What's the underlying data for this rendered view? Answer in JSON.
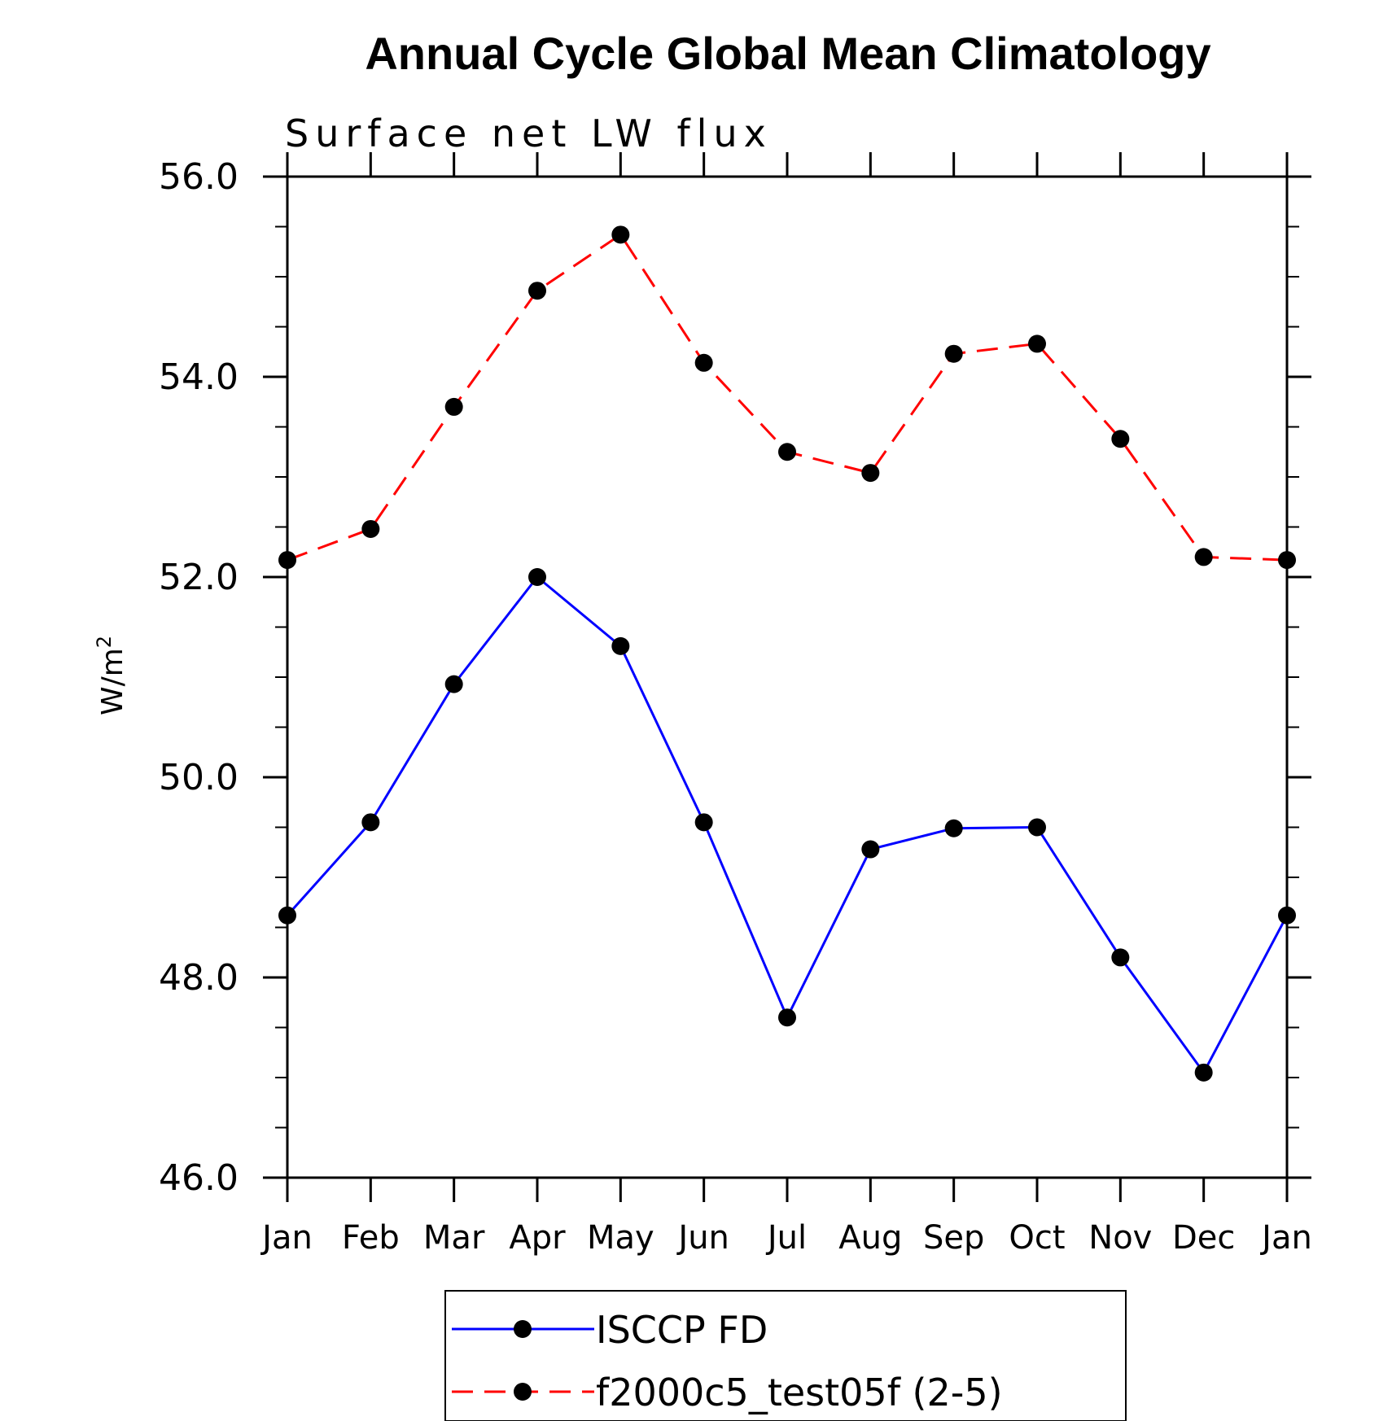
{
  "chart_data": {
    "type": "line",
    "title": "Annual Cycle Global Mean Climatology",
    "subtitle": "Surface net LW flux",
    "ylabel": "W/m",
    "ylabel_superscript": "2",
    "ylim": [
      46.0,
      56.0
    ],
    "yticks": [
      "46.0",
      "48.0",
      "50.0",
      "52.0",
      "54.0",
      "56.0"
    ],
    "categories": [
      "Jan",
      "Feb",
      "Mar",
      "Apr",
      "May",
      "Jun",
      "Jul",
      "Aug",
      "Sep",
      "Oct",
      "Nov",
      "Dec",
      "Jan"
    ],
    "series": [
      {
        "name": "ISCCP FD",
        "color": "#0000ff",
        "line_style": "solid",
        "marker": "filled-circle",
        "values": [
          48.62,
          49.55,
          50.93,
          52.0,
          51.31,
          49.55,
          47.6,
          49.28,
          49.49,
          49.5,
          48.2,
          47.05,
          48.62
        ]
      },
      {
        "name": "f2000c5_test05f (2-5)",
        "color": "#ff0000",
        "line_style": "dashed",
        "marker": "filled-circle",
        "values": [
          52.17,
          52.48,
          53.7,
          54.86,
          55.42,
          54.14,
          53.25,
          53.04,
          54.23,
          54.33,
          53.38,
          52.2,
          52.17
        ]
      }
    ],
    "legend_position": "bottom-center",
    "grid": false
  }
}
